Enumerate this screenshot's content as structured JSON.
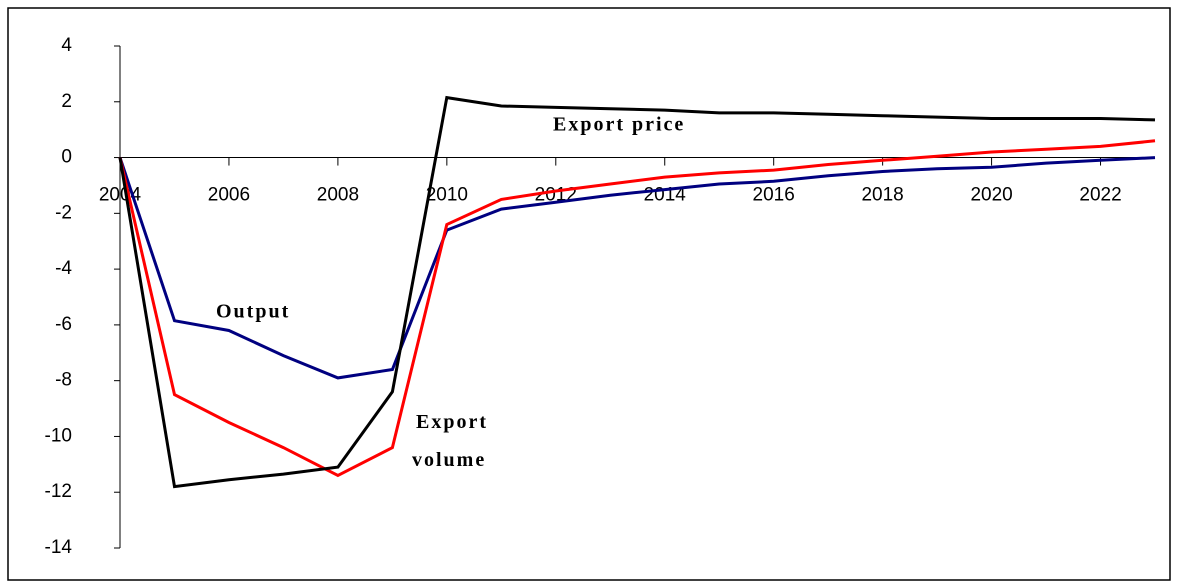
{
  "chart_data": {
    "type": "line",
    "x": [
      2004,
      2005,
      2006,
      2007,
      2008,
      2009,
      2010,
      2011,
      2012,
      2013,
      2014,
      2015,
      2016,
      2017,
      2018,
      2019,
      2020,
      2021,
      2022,
      2023
    ],
    "series": [
      {
        "name": "Export price",
        "color": "#000000",
        "values": [
          0,
          -11.8,
          -11.55,
          -11.35,
          -11.1,
          -8.4,
          2.15,
          1.85,
          1.8,
          1.75,
          1.7,
          1.6,
          1.6,
          1.55,
          1.5,
          1.45,
          1.4,
          1.4,
          1.4,
          1.35
        ]
      },
      {
        "name": "Export volume",
        "color": "#ff0000",
        "values": [
          0,
          -8.5,
          -9.5,
          -10.4,
          -11.4,
          -10.4,
          -2.4,
          -1.5,
          -1.2,
          -0.95,
          -0.7,
          -0.55,
          -0.45,
          -0.25,
          -0.1,
          0.05,
          0.2,
          0.3,
          0.4,
          0.6
        ]
      },
      {
        "name": "Output",
        "color": "#000080",
        "values": [
          0,
          -5.85,
          -6.2,
          -7.1,
          -7.9,
          -7.6,
          -2.6,
          -1.85,
          -1.6,
          -1.35,
          -1.15,
          -0.95,
          -0.85,
          -0.65,
          -0.5,
          -0.4,
          -0.35,
          -0.2,
          -0.1,
          0
        ]
      }
    ],
    "xlim": [
      2004,
      2023
    ],
    "xticks": [
      2004,
      2006,
      2008,
      2010,
      2012,
      2014,
      2016,
      2018,
      2020,
      2022
    ],
    "ylim": [
      -14,
      4
    ],
    "yticks": [
      -14,
      -12,
      -10,
      -8,
      -6,
      -4,
      -2,
      0,
      2,
      4
    ],
    "grid": false
  }
}
